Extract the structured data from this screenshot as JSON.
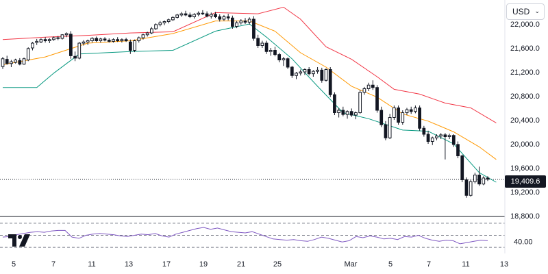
{
  "currency_selector": {
    "label": "USD",
    "chevron": "chevron-down-icon"
  },
  "logo": {
    "icon": "tradingview-logo"
  },
  "last_price": {
    "label": "19,409.6",
    "value": 19409.6
  },
  "colors": {
    "up_candle": "#ffffff",
    "down_candle": "#131722",
    "upper_band": "#f23645",
    "middle_band": "#ff9800",
    "lower_band": "#089981",
    "rsi_line": "#7e57c2",
    "grid_dashed": "#787b86"
  },
  "chart_data": [
    {
      "type": "candlestick",
      "title": "",
      "price_axis": {
        "ticks": [
          "22,000.0",
          "21,600.0",
          "21,200.0",
          "20,800.0",
          "20,400.0",
          "20,000.0",
          "19,600.0",
          "19,200.0",
          "18,800.0"
        ],
        "values": [
          22000,
          21600,
          21200,
          20800,
          20400,
          20000,
          19600,
          19200,
          18800
        ],
        "range": [
          18800,
          22400
        ]
      },
      "time_axis": {
        "ticks": [
          "5",
          "7",
          "11",
          "13",
          "17",
          "19",
          "21",
          "25",
          "Mar",
          "5",
          "7",
          "11",
          "13"
        ]
      },
      "candles": [
        {
          "o": 21290,
          "h": 21450,
          "l": 21250,
          "c": 21420
        },
        {
          "o": 21410,
          "h": 21470,
          "l": 21320,
          "c": 21340
        },
        {
          "o": 21340,
          "h": 21400,
          "l": 21280,
          "c": 21370
        },
        {
          "o": 21360,
          "h": 21420,
          "l": 21340,
          "c": 21400
        },
        {
          "o": 21390,
          "h": 21430,
          "l": 21310,
          "c": 21330
        },
        {
          "o": 21330,
          "h": 21440,
          "l": 21320,
          "c": 21420
        },
        {
          "o": 21400,
          "h": 21610,
          "l": 21380,
          "c": 21590
        },
        {
          "o": 21600,
          "h": 21700,
          "l": 21560,
          "c": 21680
        },
        {
          "o": 21690,
          "h": 21750,
          "l": 21650,
          "c": 21710
        },
        {
          "o": 21700,
          "h": 21760,
          "l": 21680,
          "c": 21740
        },
        {
          "o": 21740,
          "h": 21780,
          "l": 21690,
          "c": 21720
        },
        {
          "o": 21720,
          "h": 21760,
          "l": 21680,
          "c": 21740
        },
        {
          "o": 21740,
          "h": 21790,
          "l": 21720,
          "c": 21770
        },
        {
          "o": 21770,
          "h": 21800,
          "l": 21730,
          "c": 21760
        },
        {
          "o": 21760,
          "h": 21830,
          "l": 21740,
          "c": 21820
        },
        {
          "o": 21820,
          "h": 21860,
          "l": 21780,
          "c": 21840
        },
        {
          "o": 21830,
          "h": 21880,
          "l": 21420,
          "c": 21470
        },
        {
          "o": 21460,
          "h": 21540,
          "l": 21380,
          "c": 21430
        },
        {
          "o": 21430,
          "h": 21700,
          "l": 21410,
          "c": 21680
        },
        {
          "o": 21680,
          "h": 21730,
          "l": 21640,
          "c": 21700
        },
        {
          "o": 21700,
          "h": 21740,
          "l": 21650,
          "c": 21720
        },
        {
          "o": 21720,
          "h": 21780,
          "l": 21690,
          "c": 21760
        },
        {
          "o": 21760,
          "h": 21790,
          "l": 21700,
          "c": 21720
        },
        {
          "o": 21720,
          "h": 21770,
          "l": 21690,
          "c": 21750
        },
        {
          "o": 21750,
          "h": 21780,
          "l": 21710,
          "c": 21730
        },
        {
          "o": 21730,
          "h": 21760,
          "l": 21690,
          "c": 21710
        },
        {
          "o": 21710,
          "h": 21760,
          "l": 21690,
          "c": 21740
        },
        {
          "o": 21740,
          "h": 21780,
          "l": 21700,
          "c": 21720
        },
        {
          "o": 21720,
          "h": 21760,
          "l": 21690,
          "c": 21740
        },
        {
          "o": 21740,
          "h": 21770,
          "l": 21700,
          "c": 21720
        },
        {
          "o": 21700,
          "h": 21740,
          "l": 21500,
          "c": 21560
        },
        {
          "o": 21560,
          "h": 21740,
          "l": 21530,
          "c": 21720
        },
        {
          "o": 21720,
          "h": 21790,
          "l": 21690,
          "c": 21770
        },
        {
          "o": 21770,
          "h": 21840,
          "l": 21740,
          "c": 21820
        },
        {
          "o": 21820,
          "h": 21870,
          "l": 21790,
          "c": 21850
        },
        {
          "o": 21850,
          "h": 21950,
          "l": 21830,
          "c": 21920
        },
        {
          "o": 21920,
          "h": 22010,
          "l": 21900,
          "c": 21990
        },
        {
          "o": 21990,
          "h": 22050,
          "l": 21960,
          "c": 22020
        },
        {
          "o": 22020,
          "h": 22060,
          "l": 21980,
          "c": 22040
        },
        {
          "o": 22040,
          "h": 22090,
          "l": 22010,
          "c": 22070
        },
        {
          "o": 22070,
          "h": 22130,
          "l": 22050,
          "c": 22110
        },
        {
          "o": 22110,
          "h": 22170,
          "l": 22090,
          "c": 22150
        },
        {
          "o": 22150,
          "h": 22200,
          "l": 22120,
          "c": 22170
        },
        {
          "o": 22170,
          "h": 22220,
          "l": 22130,
          "c": 22150
        },
        {
          "o": 22150,
          "h": 22190,
          "l": 22100,
          "c": 22120
        },
        {
          "o": 22120,
          "h": 22180,
          "l": 22090,
          "c": 22160
        },
        {
          "o": 22160,
          "h": 22210,
          "l": 22130,
          "c": 22180
        },
        {
          "o": 22180,
          "h": 22230,
          "l": 22150,
          "c": 22170
        },
        {
          "o": 22170,
          "h": 22210,
          "l": 22110,
          "c": 22130
        },
        {
          "o": 22130,
          "h": 22190,
          "l": 22090,
          "c": 22160
        },
        {
          "o": 22160,
          "h": 22200,
          "l": 22100,
          "c": 22120
        },
        {
          "o": 22120,
          "h": 22160,
          "l": 22040,
          "c": 22080
        },
        {
          "o": 22080,
          "h": 22150,
          "l": 22050,
          "c": 22120
        },
        {
          "o": 22120,
          "h": 22170,
          "l": 22060,
          "c": 22100
        },
        {
          "o": 22100,
          "h": 22140,
          "l": 21920,
          "c": 21960
        },
        {
          "o": 21960,
          "h": 22050,
          "l": 21930,
          "c": 22020
        },
        {
          "o": 22020,
          "h": 22080,
          "l": 21990,
          "c": 22050
        },
        {
          "o": 22050,
          "h": 22100,
          "l": 22000,
          "c": 22030
        },
        {
          "o": 22030,
          "h": 22110,
          "l": 21990,
          "c": 22080
        },
        {
          "o": 22080,
          "h": 22130,
          "l": 21720,
          "c": 21760
        },
        {
          "o": 21760,
          "h": 21820,
          "l": 21600,
          "c": 21640
        },
        {
          "o": 21640,
          "h": 21720,
          "l": 21600,
          "c": 21680
        },
        {
          "o": 21680,
          "h": 21720,
          "l": 21500,
          "c": 21540
        },
        {
          "o": 21540,
          "h": 21600,
          "l": 21470,
          "c": 21560
        },
        {
          "o": 21560,
          "h": 21620,
          "l": 21460,
          "c": 21490
        },
        {
          "o": 21490,
          "h": 21520,
          "l": 21360,
          "c": 21400
        },
        {
          "o": 21400,
          "h": 21450,
          "l": 21300,
          "c": 21420
        },
        {
          "o": 21420,
          "h": 21440,
          "l": 21250,
          "c": 21280
        },
        {
          "o": 21280,
          "h": 21300,
          "l": 21100,
          "c": 21140
        },
        {
          "o": 21140,
          "h": 21200,
          "l": 21080,
          "c": 21180
        },
        {
          "o": 21180,
          "h": 21240,
          "l": 21140,
          "c": 21200
        },
        {
          "o": 21200,
          "h": 21260,
          "l": 21150,
          "c": 21240
        },
        {
          "o": 21240,
          "h": 21280,
          "l": 21140,
          "c": 21170
        },
        {
          "o": 21170,
          "h": 21230,
          "l": 21120,
          "c": 21210
        },
        {
          "o": 21210,
          "h": 21280,
          "l": 21170,
          "c": 21230
        },
        {
          "o": 21230,
          "h": 21270,
          "l": 21020,
          "c": 21060
        },
        {
          "o": 21060,
          "h": 21260,
          "l": 21040,
          "c": 21240
        },
        {
          "o": 21240,
          "h": 21280,
          "l": 20780,
          "c": 20820
        },
        {
          "o": 20820,
          "h": 20860,
          "l": 20480,
          "c": 20520
        },
        {
          "o": 20520,
          "h": 20600,
          "l": 20440,
          "c": 20560
        },
        {
          "o": 20560,
          "h": 20620,
          "l": 20460,
          "c": 20490
        },
        {
          "o": 20490,
          "h": 20560,
          "l": 20420,
          "c": 20540
        },
        {
          "o": 20540,
          "h": 20590,
          "l": 20450,
          "c": 20480
        },
        {
          "o": 20480,
          "h": 20540,
          "l": 20410,
          "c": 20520
        },
        {
          "o": 20520,
          "h": 20900,
          "l": 20500,
          "c": 20860
        },
        {
          "o": 20860,
          "h": 20950,
          "l": 20820,
          "c": 20920
        },
        {
          "o": 20920,
          "h": 21020,
          "l": 20880,
          "c": 20980
        },
        {
          "o": 20980,
          "h": 21060,
          "l": 20900,
          "c": 20940
        },
        {
          "o": 20940,
          "h": 20980,
          "l": 20520,
          "c": 20560
        },
        {
          "o": 20560,
          "h": 20620,
          "l": 20280,
          "c": 20320
        },
        {
          "o": 20320,
          "h": 20380,
          "l": 20060,
          "c": 20100
        },
        {
          "o": 20100,
          "h": 20500,
          "l": 20080,
          "c": 20440
        },
        {
          "o": 20440,
          "h": 20640,
          "l": 20400,
          "c": 20600
        },
        {
          "o": 20600,
          "h": 20640,
          "l": 20320,
          "c": 20360
        },
        {
          "o": 20360,
          "h": 20560,
          "l": 20320,
          "c": 20520
        },
        {
          "o": 20520,
          "h": 20600,
          "l": 20480,
          "c": 20570
        },
        {
          "o": 20570,
          "h": 20620,
          "l": 20500,
          "c": 20540
        },
        {
          "o": 20540,
          "h": 20640,
          "l": 20510,
          "c": 20600
        },
        {
          "o": 20600,
          "h": 20640,
          "l": 20220,
          "c": 20260
        },
        {
          "o": 20260,
          "h": 20300,
          "l": 20120,
          "c": 20160
        },
        {
          "o": 20160,
          "h": 20220,
          "l": 20000,
          "c": 20040
        },
        {
          "o": 20040,
          "h": 20120,
          "l": 19980,
          "c": 20100
        },
        {
          "o": 20100,
          "h": 20160,
          "l": 20060,
          "c": 20130
        },
        {
          "o": 20130,
          "h": 20180,
          "l": 20080,
          "c": 20150
        },
        {
          "o": 20150,
          "h": 20180,
          "l": 19740,
          "c": 20120
        },
        {
          "o": 20120,
          "h": 20170,
          "l": 20080,
          "c": 20140
        },
        {
          "o": 20140,
          "h": 20160,
          "l": 19950,
          "c": 19990
        },
        {
          "o": 19990,
          "h": 20040,
          "l": 19760,
          "c": 19800
        },
        {
          "o": 19800,
          "h": 19820,
          "l": 19360,
          "c": 19400
        },
        {
          "o": 19400,
          "h": 19440,
          "l": 19100,
          "c": 19140
        },
        {
          "o": 19140,
          "h": 19400,
          "l": 19120,
          "c": 19370
        },
        {
          "o": 19370,
          "h": 19520,
          "l": 19340,
          "c": 19480
        },
        {
          "o": 19480,
          "h": 19620,
          "l": 19300,
          "c": 19330
        },
        {
          "o": 19330,
          "h": 19460,
          "l": 19310,
          "c": 19430
        },
        {
          "o": 19430,
          "h": 19460,
          "l": 19380,
          "c": 19410
        }
      ],
      "bollinger": {
        "upper": [
          [
            0,
            21740
          ],
          [
            10,
            21780
          ],
          [
            20,
            21810
          ],
          [
            30,
            21850
          ],
          [
            40,
            21870
          ],
          [
            50,
            22190
          ],
          [
            60,
            22170
          ],
          [
            66,
            22280
          ],
          [
            70,
            22080
          ],
          [
            76,
            21620
          ],
          [
            82,
            21410
          ],
          [
            88,
            21120
          ],
          [
            92,
            20910
          ],
          [
            98,
            20830
          ],
          [
            104,
            20680
          ],
          [
            110,
            20600
          ],
          [
            116,
            20350
          ]
        ],
        "middle": [
          [
            0,
            21320
          ],
          [
            10,
            21450
          ],
          [
            20,
            21680
          ],
          [
            30,
            21720
          ],
          [
            40,
            21840
          ],
          [
            50,
            22050
          ],
          [
            58,
            22050
          ],
          [
            64,
            21880
          ],
          [
            70,
            21520
          ],
          [
            76,
            21280
          ],
          [
            82,
            20960
          ],
          [
            88,
            20780
          ],
          [
            94,
            20500
          ],
          [
            100,
            20380
          ],
          [
            106,
            20200
          ],
          [
            112,
            19950
          ],
          [
            116,
            19740
          ]
        ],
        "lower": [
          [
            0,
            20940
          ],
          [
            8,
            20940
          ],
          [
            12,
            21180
          ],
          [
            18,
            21500
          ],
          [
            30,
            21540
          ],
          [
            40,
            21560
          ],
          [
            50,
            21880
          ],
          [
            58,
            22000
          ],
          [
            62,
            21780
          ],
          [
            68,
            21420
          ],
          [
            74,
            20960
          ],
          [
            80,
            20520
          ],
          [
            86,
            20420
          ],
          [
            94,
            20230
          ],
          [
            100,
            20210
          ],
          [
            106,
            20000
          ],
          [
            112,
            19520
          ],
          [
            116,
            19360
          ]
        ]
      }
    },
    {
      "type": "line",
      "title": "",
      "series": [
        {
          "values": [
            47,
            48,
            51,
            53,
            55,
            56,
            55,
            57,
            58,
            58,
            47,
            45,
            50,
            52,
            53,
            52,
            51,
            49,
            48,
            50,
            52,
            51,
            53,
            49,
            47,
            52,
            55,
            58,
            61,
            63,
            60,
            62,
            59,
            56,
            55,
            54,
            56,
            52,
            48,
            44,
            43,
            42,
            43,
            41,
            40,
            43,
            47,
            45,
            42,
            39,
            41,
            48,
            46,
            49,
            47,
            44,
            45,
            43,
            48,
            47,
            50,
            45,
            42,
            40,
            42,
            41,
            36,
            38,
            40,
            42,
            41
          ]
        }
      ],
      "reference_lines": [
        70,
        50,
        30
      ],
      "y_axis": {
        "ticks": [
          "40.00"
        ],
        "values": [
          40
        ]
      },
      "ylim": [
        20,
        80
      ]
    }
  ]
}
